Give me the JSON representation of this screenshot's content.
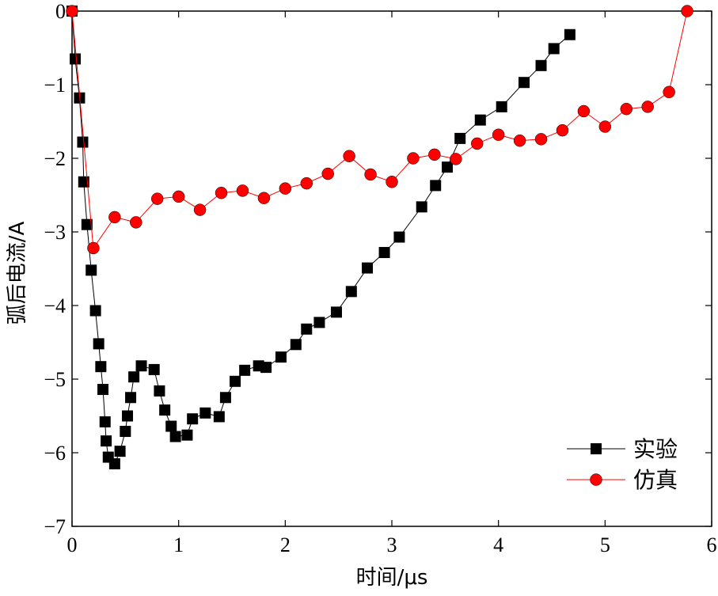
{
  "chart_data": {
    "type": "line",
    "xlabel": "时间/μs",
    "ylabel": "弧后电流/A",
    "xlim": [
      0,
      6
    ],
    "ylim": [
      -7,
      0
    ],
    "xticks": [
      0,
      1,
      2,
      3,
      4,
      5,
      6
    ],
    "yticks": [
      0,
      -1,
      -2,
      -3,
      -4,
      -5,
      -6,
      -7
    ],
    "grid": false,
    "legend_position": "bottom-right",
    "series": [
      {
        "name": "实验",
        "color": "#000000",
        "marker": "square",
        "x": [
          0.0,
          0.03,
          0.07,
          0.1,
          0.11,
          0.14,
          0.18,
          0.22,
          0.25,
          0.27,
          0.29,
          0.31,
          0.32,
          0.34,
          0.4,
          0.45,
          0.5,
          0.52,
          0.55,
          0.58,
          0.65,
          0.77,
          0.82,
          0.87,
          0.93,
          0.97,
          1.08,
          1.13,
          1.25,
          1.38,
          1.44,
          1.53,
          1.62,
          1.75,
          1.82,
          1.96,
          2.1,
          2.2,
          2.32,
          2.48,
          2.62,
          2.77,
          2.93,
          3.07,
          3.28,
          3.41,
          3.52,
          3.64,
          3.83,
          4.03,
          4.24,
          4.4,
          4.52,
          4.67
        ],
        "y": [
          0.0,
          -0.65,
          -1.18,
          -1.78,
          -2.32,
          -2.9,
          -3.52,
          -4.07,
          -4.52,
          -4.83,
          -5.14,
          -5.58,
          -5.84,
          -6.06,
          -6.15,
          -5.98,
          -5.71,
          -5.5,
          -5.25,
          -4.97,
          -4.82,
          -4.87,
          -5.16,
          -5.42,
          -5.64,
          -5.78,
          -5.76,
          -5.54,
          -5.46,
          -5.51,
          -5.25,
          -5.03,
          -4.88,
          -4.82,
          -4.84,
          -4.7,
          -4.53,
          -4.32,
          -4.23,
          -4.09,
          -3.81,
          -3.49,
          -3.28,
          -3.07,
          -2.66,
          -2.37,
          -2.12,
          -1.73,
          -1.48,
          -1.3,
          -0.97,
          -0.74,
          -0.51,
          -0.32
        ]
      },
      {
        "name": "仿真",
        "color": "#ff0000",
        "marker": "circle",
        "x": [
          0.0,
          0.2,
          0.4,
          0.6,
          0.8,
          1.0,
          1.2,
          1.4,
          1.6,
          1.8,
          2.0,
          2.2,
          2.4,
          2.6,
          2.8,
          3.0,
          3.2,
          3.4,
          3.6,
          3.8,
          4.0,
          4.2,
          4.4,
          4.6,
          4.8,
          5.0,
          5.2,
          5.4,
          5.6,
          5.77
        ],
        "y": [
          0.0,
          -3.22,
          -2.8,
          -2.87,
          -2.55,
          -2.52,
          -2.7,
          -2.47,
          -2.44,
          -2.54,
          -2.41,
          -2.34,
          -2.21,
          -1.97,
          -2.22,
          -2.32,
          -2.0,
          -1.95,
          -2.01,
          -1.8,
          -1.68,
          -1.76,
          -1.74,
          -1.62,
          -1.36,
          -1.57,
          -1.33,
          -1.3,
          -1.1,
          0.0
        ]
      }
    ]
  }
}
